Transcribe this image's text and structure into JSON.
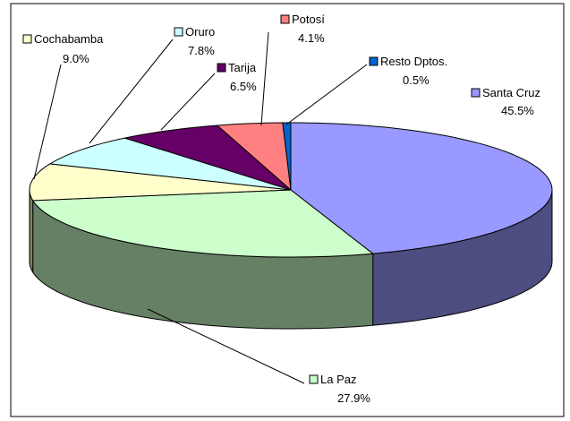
{
  "chart_data": {
    "type": "pie3d",
    "categories": [
      "Santa Cruz",
      "La Paz",
      "Cochabamba",
      "Oruro",
      "Tarija",
      "Potosí",
      "Resto Dptos."
    ],
    "values": [
      45.5,
      27.9,
      9.0,
      7.8,
      6.5,
      4.1,
      0.5
    ],
    "value_labels": [
      "45.5%",
      "27.9%",
      "9.0%",
      "7.8%",
      "6.5%",
      "4.1%",
      "0.5%"
    ],
    "colors": [
      "#9999ff",
      "#ccffcc",
      "#ffffcc",
      "#ccffff",
      "#660066",
      "#ff8080",
      "#0066cc"
    ]
  }
}
